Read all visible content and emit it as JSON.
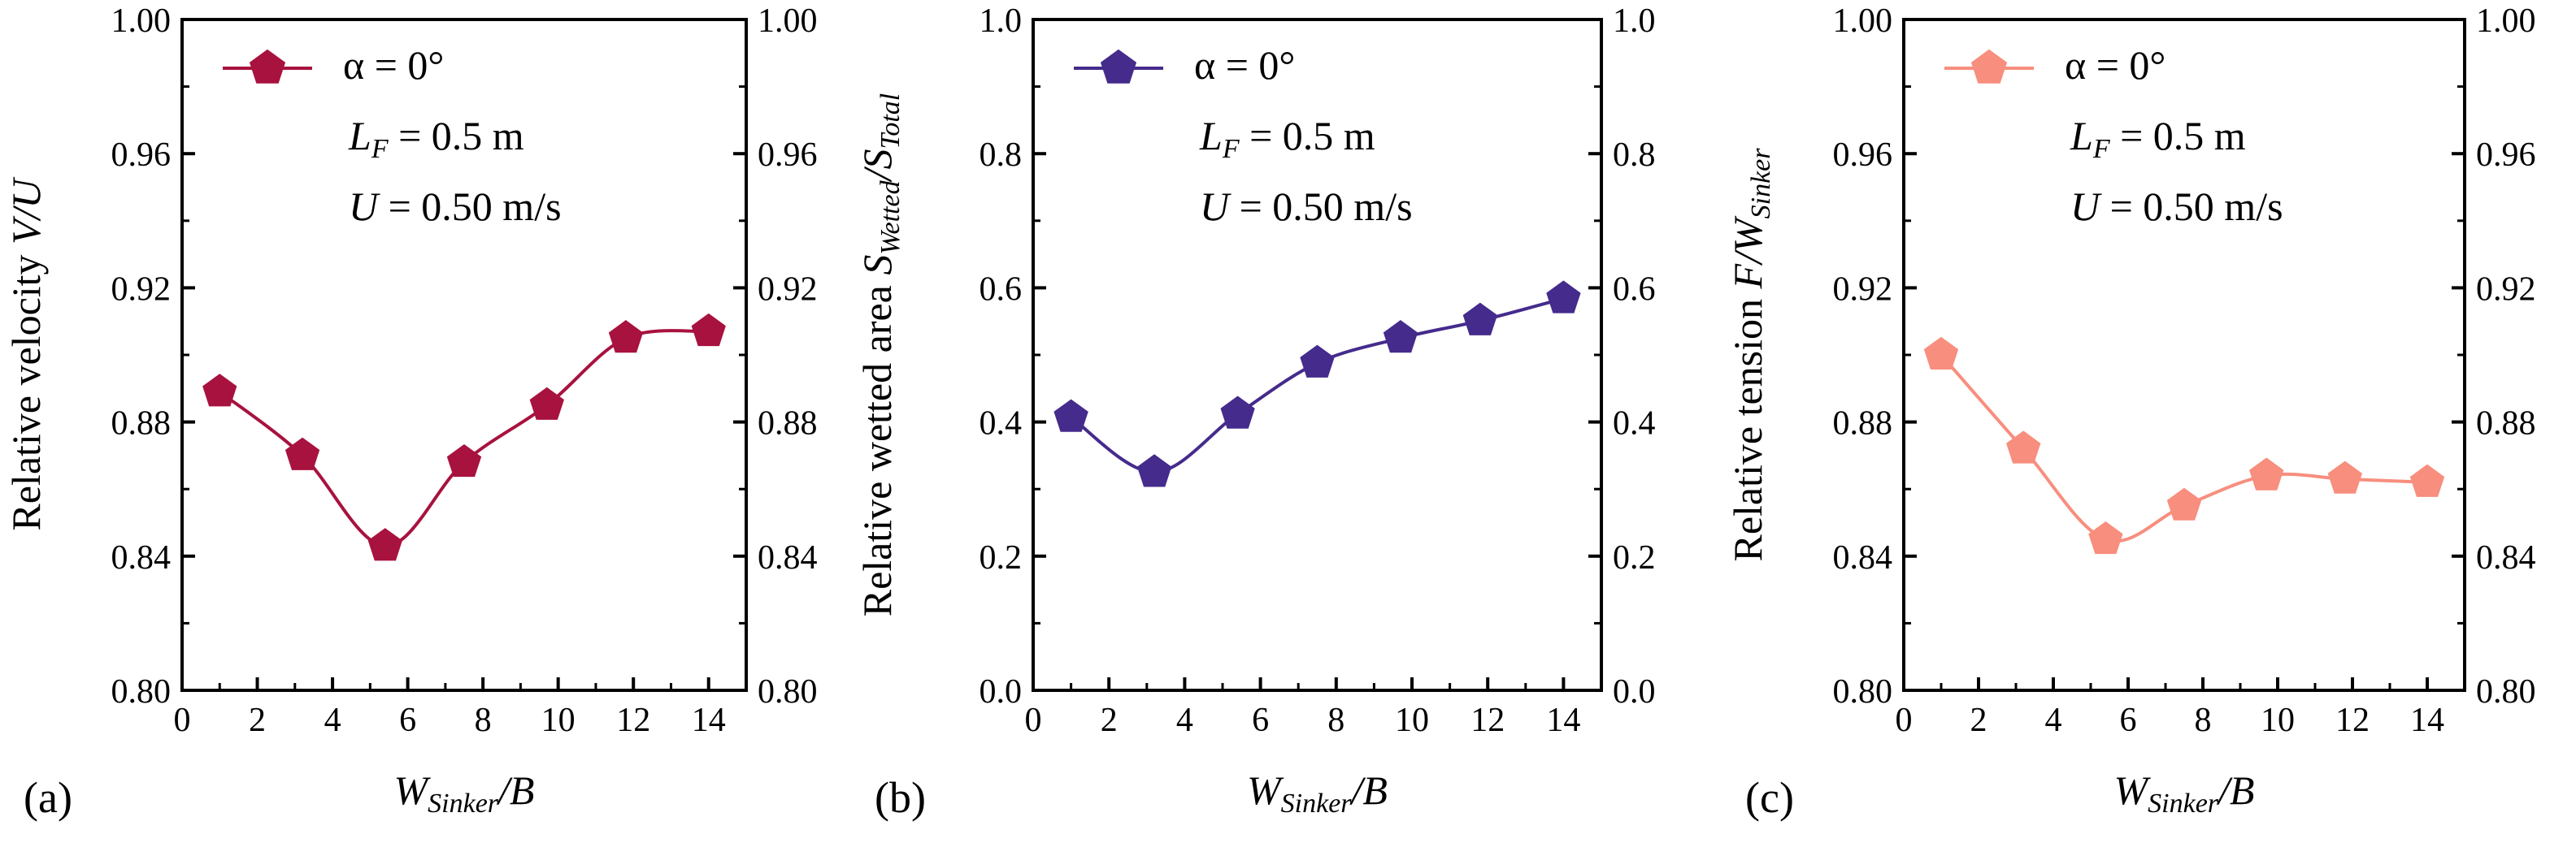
{
  "chart_data": [
    {
      "type": "line",
      "panel_label": "(a)",
      "color": "#A8123E",
      "x": [
        1.0,
        3.2,
        5.4,
        7.5,
        9.7,
        11.8,
        14.0
      ],
      "series": [
        {
          "name": "α = 0°",
          "values": [
            0.889,
            0.87,
            0.843,
            0.868,
            0.885,
            0.905,
            0.907
          ]
        }
      ],
      "xlim": [
        0,
        15
      ],
      "ylim": [
        0.8,
        1.0
      ],
      "xticks": [
        0,
        2,
        4,
        6,
        8,
        10,
        12,
        14
      ],
      "yticks": [
        0.8,
        0.84,
        0.88,
        0.92,
        0.96,
        1.0
      ],
      "ytick_labels": [
        "0.80",
        "0.84",
        "0.88",
        "0.92",
        "0.96",
        "1.00"
      ],
      "ylabel": {
        "main": "Relative velocity ",
        "italic": "V/U",
        "sub": "",
        "tail": "",
        "sub2": ""
      },
      "xlabel": {
        "italic": "W",
        "sub": "Sinker",
        "tail": "/B"
      },
      "legend": {
        "series": "α = 0°",
        "line2": {
          "italic": "L",
          "sub": "F",
          "rest": " = 0.5 m"
        },
        "line3": {
          "italic": "U",
          "rest": " = 0.50 m/s"
        }
      },
      "legend_position": "top-left"
    },
    {
      "type": "line",
      "panel_label": "(b)",
      "color": "#452B8C",
      "x": [
        1.0,
        3.2,
        5.4,
        7.5,
        9.7,
        11.8,
        14.0
      ],
      "series": [
        {
          "name": "α = 0°",
          "values": [
            0.407,
            0.325,
            0.412,
            0.488,
            0.525,
            0.551,
            0.584
          ]
        }
      ],
      "xlim": [
        0,
        15
      ],
      "ylim": [
        0.0,
        1.0
      ],
      "xticks": [
        0,
        2,
        4,
        6,
        8,
        10,
        12,
        14
      ],
      "yticks": [
        0.0,
        0.2,
        0.4,
        0.6,
        0.8,
        1.0
      ],
      "ytick_labels": [
        "0.0",
        "0.2",
        "0.4",
        "0.6",
        "0.8",
        "1.0"
      ],
      "ylabel": {
        "main": "Relative wetted area ",
        "italic": "S",
        "sub": "Wetted",
        "tail": "/S",
        "sub2": "Total"
      },
      "xlabel": {
        "italic": "W",
        "sub": "Sinker",
        "tail": "/B"
      },
      "legend": {
        "series": "α = 0°",
        "line2": {
          "italic": "L",
          "sub": "F",
          "rest": " = 0.5 m"
        },
        "line3": {
          "italic": "U",
          "rest": " = 0.50 m/s"
        }
      },
      "legend_position": "top-left"
    },
    {
      "type": "line",
      "panel_label": "(c)",
      "color": "#F88E7E",
      "x": [
        1.0,
        3.2,
        5.4,
        7.5,
        9.7,
        11.8,
        14.0
      ],
      "series": [
        {
          "name": "α = 0°",
          "values": [
            0.9,
            0.872,
            0.845,
            0.855,
            0.864,
            0.863,
            0.862
          ]
        }
      ],
      "xlim": [
        0,
        15
      ],
      "ylim": [
        0.8,
        1.0
      ],
      "xticks": [
        0,
        2,
        4,
        6,
        8,
        10,
        12,
        14
      ],
      "yticks": [
        0.8,
        0.84,
        0.88,
        0.92,
        0.96,
        1.0
      ],
      "ytick_labels": [
        "0.80",
        "0.84",
        "0.88",
        "0.92",
        "0.96",
        "1.00"
      ],
      "ylabel": {
        "main": "Relative tension ",
        "italic": "F/W",
        "sub": "Sinker",
        "tail": "",
        "sub2": ""
      },
      "xlabel": {
        "italic": "W",
        "sub": "Sinker",
        "tail": "/B"
      },
      "legend": {
        "series": "α = 0°",
        "line2": {
          "italic": "L",
          "sub": "F",
          "rest": " = 0.5 m"
        },
        "line3": {
          "italic": "U",
          "rest": " = 0.50 m/s"
        }
      },
      "legend_position": "top-left"
    }
  ]
}
